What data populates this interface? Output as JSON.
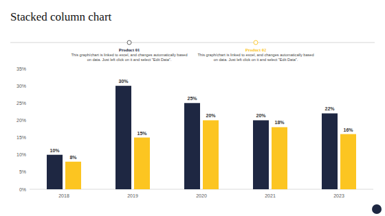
{
  "chart_data": {
    "type": "bar",
    "title": "Stacked column chart",
    "categories": [
      "2018",
      "2019",
      "2020",
      "2021",
      "2023"
    ],
    "series": [
      {
        "name": "Product 01",
        "color": "#1e2742",
        "values": [
          10,
          30,
          25,
          20,
          22
        ],
        "value_labels": [
          "10%",
          "30%",
          "25%",
          "20%",
          "22%"
        ]
      },
      {
        "name": "Product 02",
        "color": "#fcc521",
        "values": [
          8,
          15,
          20,
          18,
          16
        ],
        "value_labels": [
          "8%",
          "15%",
          "20%",
          "18%",
          "16%"
        ]
      }
    ],
    "annotations": [
      "This graph/chart is linked to excel, and changes automatically based on data. Just left click on it and select \"Edit Data\".",
      "This graph/chart is linked to excel, and changes automatically based on data. Just left click on it and select \"Edit Data\"."
    ],
    "ylim": [
      0,
      35
    ],
    "yticks": [
      {
        "value": 0,
        "label": "0%"
      },
      {
        "value": 5,
        "label": "5%"
      },
      {
        "value": 10,
        "label": "10%"
      },
      {
        "value": 15,
        "label": "15%"
      },
      {
        "value": 20,
        "label": "20%"
      },
      {
        "value": 25,
        "label": "25%"
      },
      {
        "value": 30,
        "label": "30%"
      },
      {
        "value": 35,
        "label": "35%"
      }
    ],
    "grid": false,
    "data_labels": true
  }
}
